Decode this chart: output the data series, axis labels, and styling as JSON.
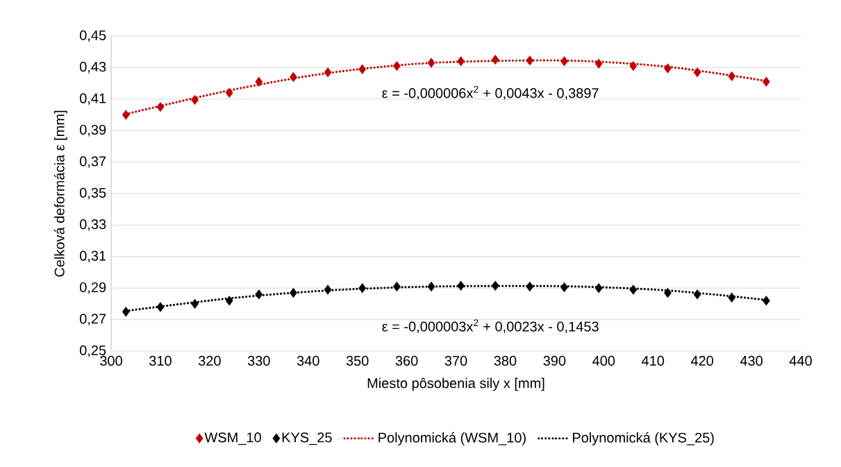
{
  "chart_data": {
    "type": "scatter",
    "xlabel": "Miesto pôsobenia sily x [mm]",
    "ylabel": "Celková deformácia ε [mm]",
    "xlim": [
      300,
      440
    ],
    "xticks": [
      300,
      310,
      320,
      330,
      340,
      350,
      360,
      370,
      380,
      390,
      400,
      410,
      420,
      430,
      440
    ],
    "ylim": [
      0.25,
      0.45
    ],
    "yticks": [
      {
        "value": 0.25,
        "label": "0,25"
      },
      {
        "value": 0.27,
        "label": "0,27"
      },
      {
        "value": 0.29,
        "label": "0,29"
      },
      {
        "value": 0.31,
        "label": "0,31"
      },
      {
        "value": 0.33,
        "label": "0,33"
      },
      {
        "value": 0.35,
        "label": "0,35"
      },
      {
        "value": 0.37,
        "label": "0,37"
      },
      {
        "value": 0.39,
        "label": "0,39"
      },
      {
        "value": 0.41,
        "label": "0,41"
      },
      {
        "value": 0.43,
        "label": "0,43"
      },
      {
        "value": 0.45,
        "label": "0,45"
      }
    ],
    "grid": "y",
    "legend": "bottom",
    "series": [
      {
        "name": "WSM_10",
        "marker": "diamond",
        "color": "#c00000",
        "x": [
          303,
          310,
          317,
          324,
          330,
          337,
          344,
          351,
          358,
          365,
          371,
          378,
          385,
          392,
          399,
          406,
          413,
          419,
          426,
          433
        ],
        "values": [
          0.4,
          0.405,
          0.4095,
          0.414,
          0.421,
          0.424,
          0.427,
          0.429,
          0.431,
          0.433,
          0.434,
          0.435,
          0.4345,
          0.434,
          0.4325,
          0.431,
          0.4295,
          0.427,
          0.4245,
          0.421
        ]
      },
      {
        "name": "KYS_25",
        "marker": "diamond",
        "color": "#000000",
        "x": [
          303,
          310,
          317,
          324,
          330,
          337,
          344,
          351,
          358,
          365,
          371,
          378,
          385,
          392,
          399,
          406,
          413,
          419,
          426,
          433
        ],
        "values": [
          0.275,
          0.278,
          0.28,
          0.282,
          0.286,
          0.287,
          0.289,
          0.29,
          0.291,
          0.291,
          0.2915,
          0.2915,
          0.291,
          0.2905,
          0.29,
          0.289,
          0.287,
          0.286,
          0.284,
          0.282
        ]
      },
      {
        "name": "Polynomická (WSM_10)",
        "type": "line",
        "marker": "none",
        "line_style": "dotted",
        "color": "#c00000",
        "x": [
          303,
          324,
          344,
          365,
          392,
          413,
          433
        ],
        "values": [
          0.4005,
          0.4155,
          0.4265,
          0.433,
          0.4345,
          0.4305,
          0.4215
        ]
      },
      {
        "name": "Polynomická (KYS_25)",
        "type": "line",
        "marker": "none",
        "line_style": "dotted",
        "color": "#000000",
        "x": [
          303,
          324,
          344,
          365,
          392,
          413,
          433
        ],
        "values": [
          0.2755,
          0.2835,
          0.2885,
          0.291,
          0.2912,
          0.2885,
          0.2825
        ]
      }
    ],
    "annotations": [
      "ε = -0,000006x$^{2}$ + 0,0043x - 0,3897",
      "ε = -0,000003x$^{2}$ + 0,0023x - 0,1453"
    ]
  }
}
